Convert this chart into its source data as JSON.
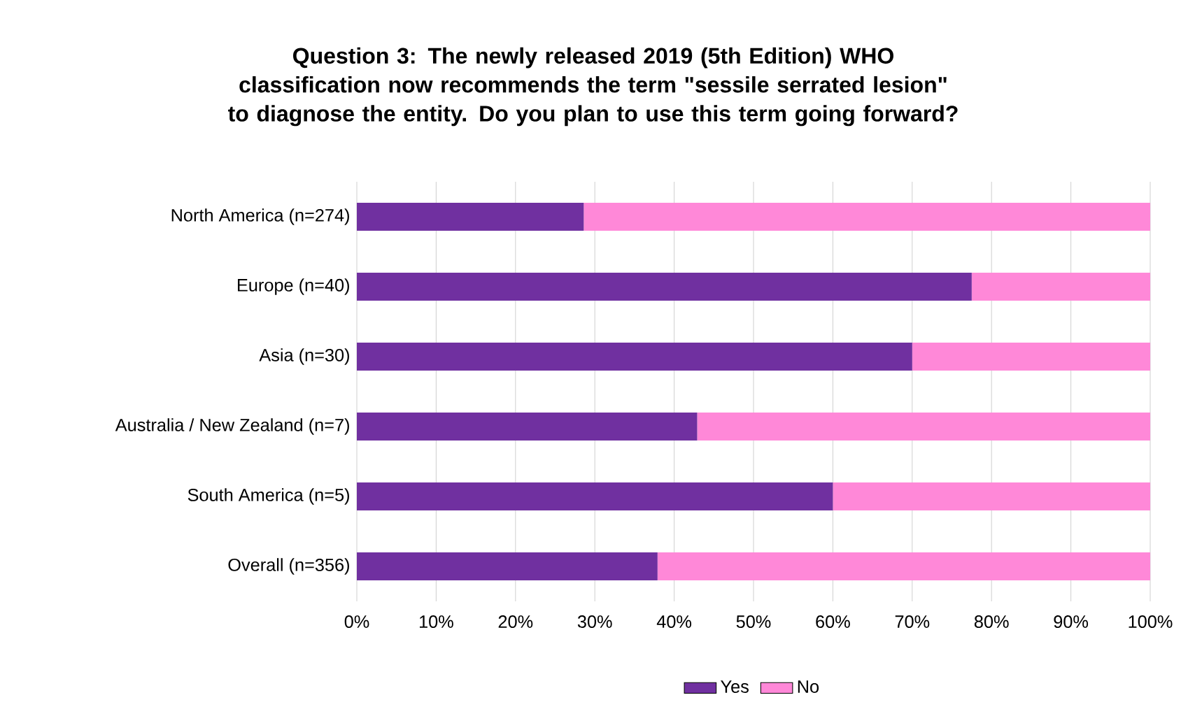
{
  "chart_data": {
    "type": "bar",
    "orientation": "horizontal",
    "stacked": true,
    "title": "Question 3: The newly released 2019 (5th Edition) WHO classification now recommends the term \"sessile serrated lesion\" to diagnose the entity. Do you plan to use this term going forward?",
    "categories": [
      "North America (n=274)",
      "Europe (n=40)",
      "Asia (n=30)",
      "Australia / New Zealand (n=7)",
      "South America (n=5)",
      "Overall (n=356)"
    ],
    "series": [
      {
        "name": "Yes",
        "color": "#7030a0",
        "values": [
          28.6,
          77.5,
          70,
          42.9,
          60,
          37.9
        ]
      },
      {
        "name": "No",
        "color": "#ff88d8",
        "values": [
          71.4,
          22.5,
          30,
          57.1,
          40,
          62.1
        ]
      }
    ],
    "xlim": [
      0,
      100
    ],
    "xticks": [
      {
        "value": 0,
        "label": "0%"
      },
      {
        "value": 10,
        "label": "10%"
      },
      {
        "value": 20,
        "label": "20%"
      },
      {
        "value": 30,
        "label": "30%"
      },
      {
        "value": 40,
        "label": "40%"
      },
      {
        "value": 50,
        "label": "50%"
      },
      {
        "value": 60,
        "label": "60%"
      },
      {
        "value": 70,
        "label": "70%"
      },
      {
        "value": 80,
        "label": "80%"
      },
      {
        "value": 90,
        "label": "90%"
      },
      {
        "value": 100,
        "label": "100%"
      }
    ],
    "grid": "x",
    "legend": "bottom"
  }
}
